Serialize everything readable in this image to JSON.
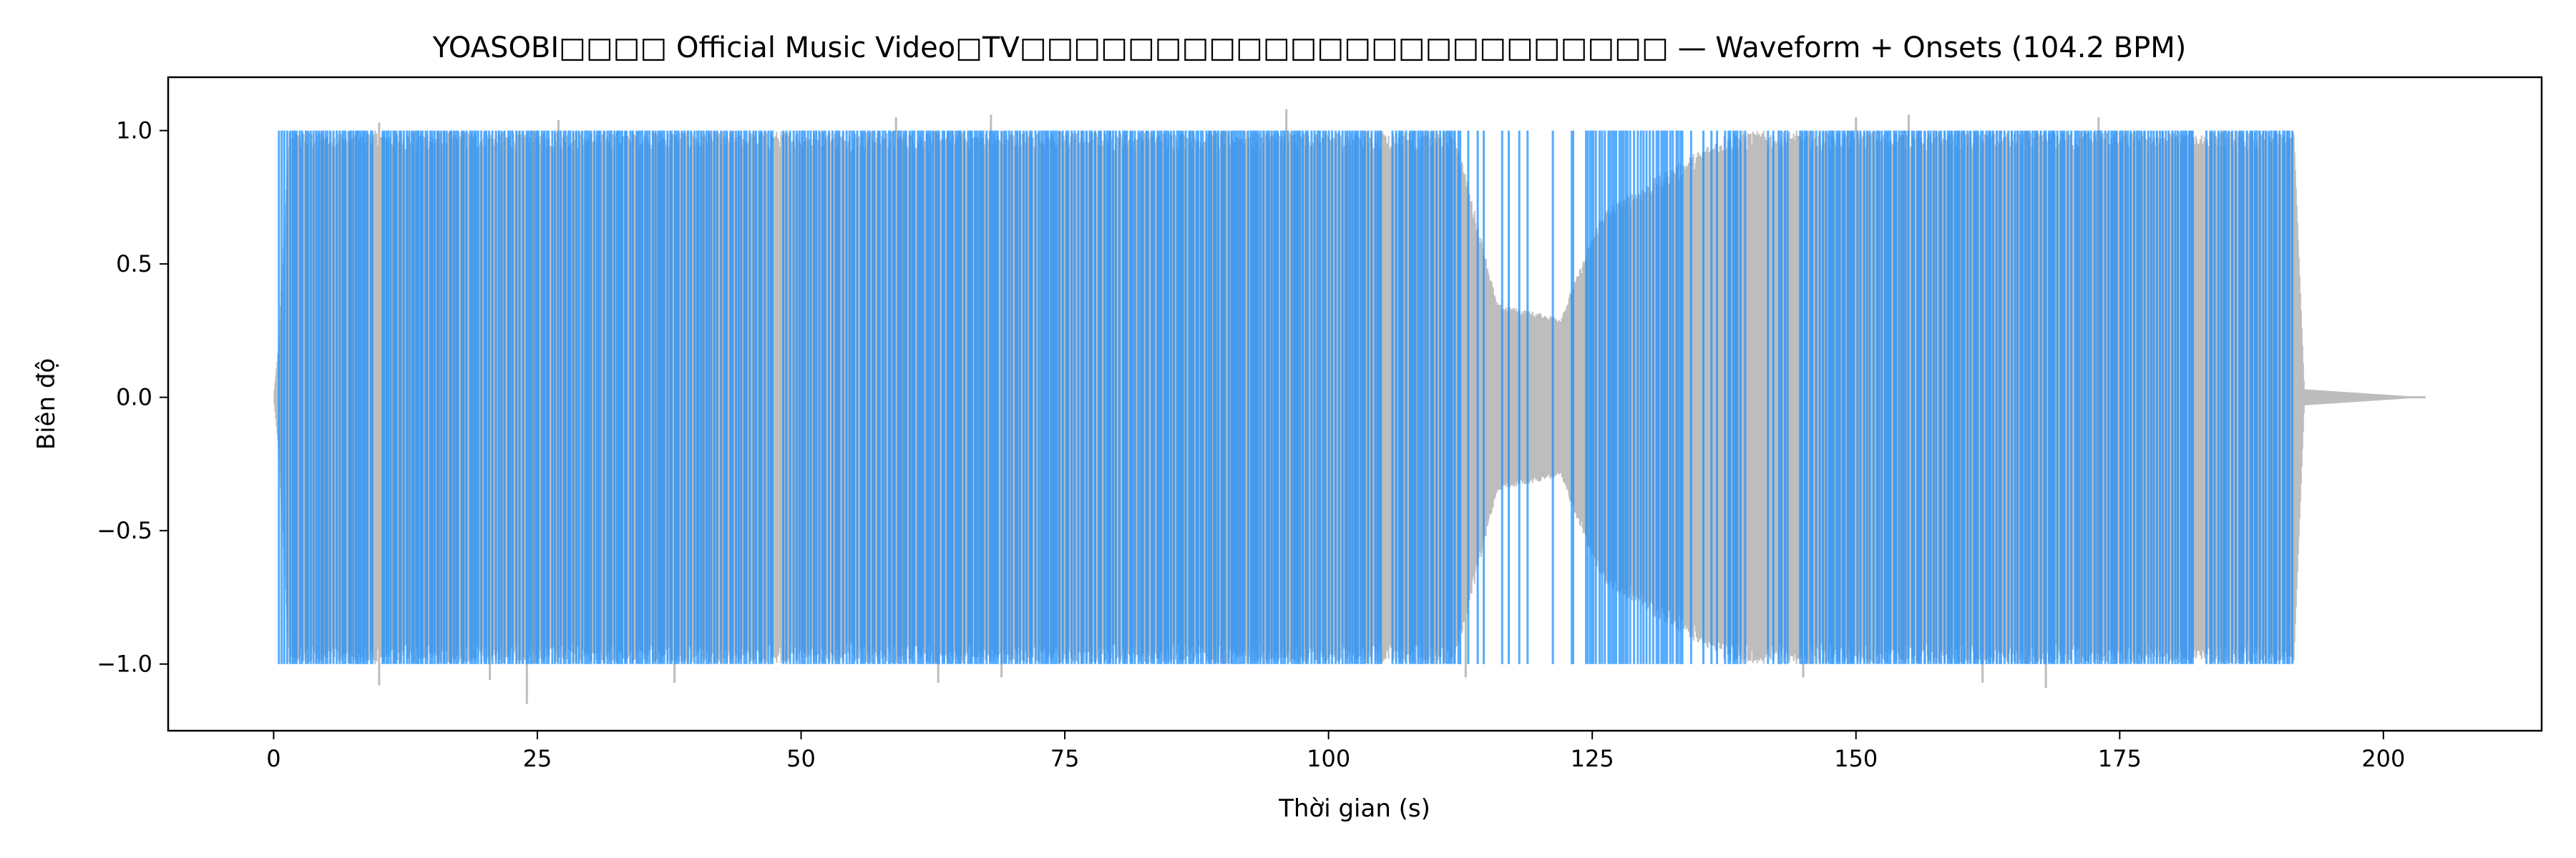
{
  "chart_data": {
    "type": "line",
    "title": "YOASOBI□□□□ Official Music Video□TV□□□□□□□□□□□□□□□□□□□□□□□□ — Waveform + Onsets (104.2 BPM)",
    "xlabel": "Thời gian (s)",
    "ylabel": "Biên độ",
    "xlim": [
      -10,
      215
    ],
    "ylim": [
      -1.25,
      1.2
    ],
    "xticks": [
      0,
      25,
      50,
      75,
      100,
      125,
      150,
      175,
      200
    ],
    "yticks": [
      -1.0,
      -0.5,
      0.0,
      0.5,
      1.0
    ],
    "grid": false,
    "colors": {
      "waveform": "#bdbdbd",
      "onset": "#1e90ff"
    },
    "waveform": {
      "duration": 204,
      "music_end": 191.5,
      "envelope": [
        {
          "t": 0,
          "amp": 0.0
        },
        {
          "t": 0.5,
          "amp": 0.2
        },
        {
          "t": 1.5,
          "amp": 1.0
        },
        {
          "t": 112,
          "amp": 1.0
        },
        {
          "t": 116,
          "amp": 0.35
        },
        {
          "t": 122,
          "amp": 0.3
        },
        {
          "t": 126,
          "amp": 0.7
        },
        {
          "t": 132,
          "amp": 0.85
        },
        {
          "t": 138,
          "amp": 1.0
        },
        {
          "t": 191.5,
          "amp": 1.0
        },
        {
          "t": 192.5,
          "amp": 0.03
        },
        {
          "t": 204,
          "amp": 0.0
        }
      ],
      "peaks": [
        {
          "t": 10,
          "y": -1.08
        },
        {
          "t": 10,
          "y": 1.03
        },
        {
          "t": 20.5,
          "y": -1.06
        },
        {
          "t": 24,
          "y": -1.15
        },
        {
          "t": 27,
          "y": 1.04
        },
        {
          "t": 38,
          "y": -1.07
        },
        {
          "t": 59,
          "y": 1.05
        },
        {
          "t": 63,
          "y": -1.07
        },
        {
          "t": 68,
          "y": 1.06
        },
        {
          "t": 69,
          "y": -1.05
        },
        {
          "t": 96,
          "y": 1.08
        },
        {
          "t": 113,
          "y": -1.05
        },
        {
          "t": 145,
          "y": -1.05
        },
        {
          "t": 150,
          "y": 1.05
        },
        {
          "t": 155,
          "y": 1.06
        },
        {
          "t": 162,
          "y": -1.07
        },
        {
          "t": 168,
          "y": -1.09
        },
        {
          "t": 173,
          "y": 1.05
        }
      ]
    },
    "onsets": {
      "y_range": [
        -1.0,
        1.0
      ],
      "start": 0.5,
      "end": 191.5,
      "gaps": [
        {
          "from": 112.5,
          "to": 123.5,
          "density": 0.25
        },
        {
          "from": 134.5,
          "to": 145,
          "density": 0.45
        },
        {
          "from": 9.5,
          "to": 10.2,
          "density": 0
        },
        {
          "from": 47.5,
          "to": 48.2,
          "density": 0
        },
        {
          "from": 105.0,
          "to": 105.8,
          "density": 0
        },
        {
          "from": 123.6,
          "to": 124.3,
          "density": 0
        },
        {
          "from": 133.6,
          "to": 134.3,
          "density": 0
        },
        {
          "from": 182.0,
          "to": 183.0,
          "density": 0
        }
      ]
    }
  }
}
